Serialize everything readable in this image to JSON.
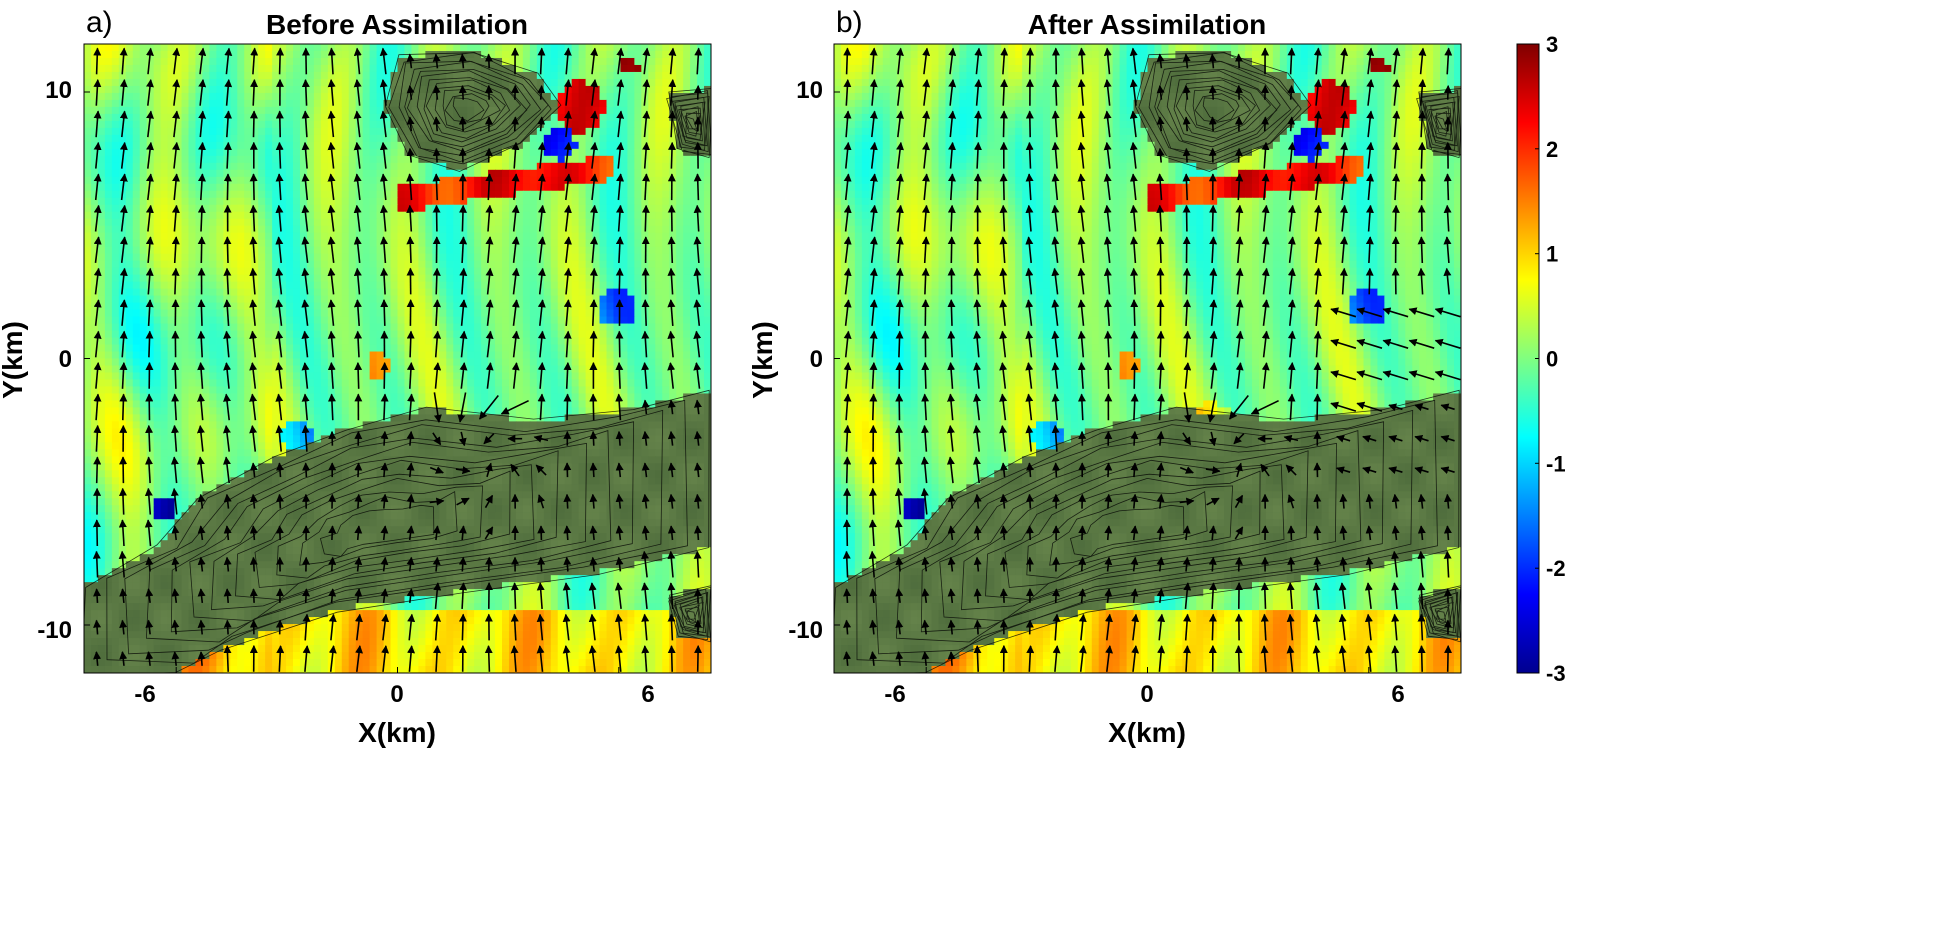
{
  "chart_data": [
    {
      "type": "heatmap",
      "panel_label": "a)",
      "title": "Before Assimilation",
      "xlabel": "X(km)",
      "ylabel": "Y(km)",
      "xlim": [
        -8.5,
        8.5
      ],
      "ylim": [
        -11.8,
        11.8
      ],
      "xticks": [
        -6,
        0,
        6
      ],
      "yticks": [
        -10,
        0,
        10
      ],
      "variant": 0
    },
    {
      "type": "heatmap",
      "panel_label": "b)",
      "title": "After Assimilation",
      "xlabel": "X(km)",
      "ylabel": "Y(km)",
      "xlim": [
        -8.5,
        8.5
      ],
      "ylim": [
        -11.8,
        11.8
      ],
      "xticks": [
        -6,
        0,
        6
      ],
      "yticks": [
        -10,
        0,
        10
      ],
      "variant": 1
    }
  ],
  "colorbar": {
    "colormap": "jet",
    "range": [
      -3,
      3
    ],
    "ticks": [
      3,
      2,
      1,
      0,
      -1,
      -2,
      -3
    ],
    "colors": [
      "#00008f",
      "#0000ff",
      "#0080ff",
      "#00ffff",
      "#80ff80",
      "#ffff00",
      "#ff8000",
      "#ff0000",
      "#800000"
    ]
  },
  "overlay": {
    "terrain_contour_color": "#000000",
    "terrain_fill_color": "#5a7b3d",
    "arrow_color": "#000000"
  }
}
